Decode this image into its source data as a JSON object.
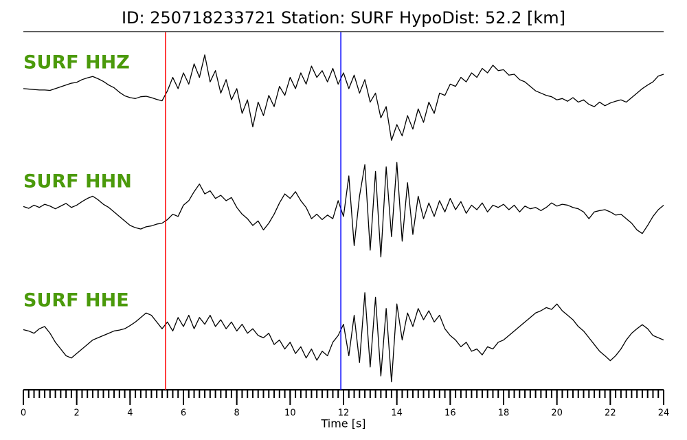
{
  "chart_data": {
    "type": "line",
    "title": "ID: 250718233721   Station: SURF   HypoDist:    52.2 [km]",
    "xlabel": "Time [s]",
    "xlim": [
      0,
      24
    ],
    "xticks": [
      0,
      2,
      4,
      6,
      8,
      10,
      12,
      14,
      16,
      18,
      20,
      22,
      24
    ],
    "minor_xticks": [
      0,
      0.2,
      0.4,
      0.6,
      0.8,
      1,
      1.2,
      1.4,
      1.6,
      1.8,
      2,
      2.2,
      2.4,
      2.6,
      2.8,
      3,
      3.2,
      3.4,
      3.6,
      3.8,
      4,
      4.2,
      4.4,
      4.6,
      4.8,
      5,
      5.2,
      5.4,
      5.6,
      5.8,
      6,
      6.2,
      6.4,
      6.6,
      6.8,
      7,
      7.2,
      7.4,
      7.6,
      7.8,
      8,
      8.2,
      8.4,
      8.6,
      8.8,
      9,
      9.2,
      9.4,
      9.6,
      9.8,
      10,
      10.2,
      10.4,
      10.6,
      10.8,
      11,
      11.2,
      11.4,
      11.6,
      11.8,
      12,
      12.2,
      12.4,
      12.6,
      12.8,
      13,
      13.2,
      13.4,
      13.6,
      13.8,
      14,
      14.2,
      14.4,
      14.6,
      14.8,
      15,
      15.2,
      15.4,
      15.6,
      15.8,
      16,
      16.2,
      16.4,
      16.6,
      16.8,
      17,
      17.2,
      17.4,
      17.6,
      17.8,
      18,
      18.2,
      18.4,
      18.6,
      18.8,
      19,
      19.2,
      19.4,
      19.6,
      19.8,
      20,
      20.2,
      20.4,
      20.6,
      20.8,
      21,
      21.2,
      21.4,
      21.6,
      21.8,
      22,
      22.2,
      22.4,
      22.6,
      22.8,
      23,
      23.2,
      23.4,
      23.6,
      23.8,
      24
    ],
    "ylim": [
      -1.1,
      1.1
    ],
    "label_color": "#4b9a0b",
    "trace_color": "#000000",
    "vlines": [
      {
        "x": 5.33,
        "color": "#ff0000"
      },
      {
        "x": 11.9,
        "color": "#0000ff"
      }
    ],
    "x": [
      0,
      0.2,
      0.4,
      0.6,
      0.8,
      1,
      1.2,
      1.4,
      1.6,
      1.8,
      2,
      2.2,
      2.4,
      2.6,
      2.8,
      3,
      3.2,
      3.4,
      3.6,
      3.8,
      4,
      4.2,
      4.4,
      4.6,
      4.8,
      5,
      5.2,
      5.4,
      5.6,
      5.8,
      6,
      6.2,
      6.4,
      6.6,
      6.8,
      7,
      7.2,
      7.4,
      7.6,
      7.8,
      8,
      8.2,
      8.4,
      8.6,
      8.8,
      9,
      9.2,
      9.4,
      9.6,
      9.8,
      10,
      10.2,
      10.4,
      10.6,
      10.8,
      11,
      11.2,
      11.4,
      11.6,
      11.8,
      12,
      12.2,
      12.4,
      12.6,
      12.8,
      13,
      13.2,
      13.4,
      13.6,
      13.8,
      14,
      14.2,
      14.4,
      14.6,
      14.8,
      15,
      15.2,
      15.4,
      15.6,
      15.8,
      16,
      16.2,
      16.4,
      16.6,
      16.8,
      17,
      17.2,
      17.4,
      17.6,
      17.8,
      18,
      18.2,
      18.4,
      18.6,
      18.8,
      19,
      19.2,
      19.4,
      19.6,
      19.8,
      20,
      20.2,
      20.4,
      20.6,
      20.8,
      21,
      21.2,
      21.4,
      21.6,
      21.8,
      22,
      22.2,
      22.4,
      22.6,
      22.8,
      23,
      23.2,
      23.4,
      23.6,
      23.8,
      24
    ],
    "series": [
      {
        "name": "SURF HHZ",
        "values": [
          0.2,
          0.19,
          0.18,
          0.17,
          0.17,
          0.16,
          0.2,
          0.24,
          0.28,
          0.32,
          0.34,
          0.4,
          0.44,
          0.47,
          0.42,
          0.36,
          0.28,
          0.22,
          0.12,
          0.04,
          0.0,
          -0.02,
          0.02,
          0.03,
          0.0,
          -0.04,
          -0.07,
          0.15,
          0.45,
          0.2,
          0.55,
          0.3,
          0.75,
          0.45,
          0.95,
          0.35,
          0.6,
          0.1,
          0.4,
          -0.05,
          0.2,
          -0.35,
          -0.05,
          -0.65,
          -0.1,
          -0.4,
          0.05,
          -0.2,
          0.25,
          0.05,
          0.45,
          0.2,
          0.55,
          0.3,
          0.7,
          0.45,
          0.6,
          0.35,
          0.65,
          0.3,
          0.55,
          0.2,
          0.5,
          0.1,
          0.4,
          -0.1,
          0.1,
          -0.45,
          -0.2,
          -0.95,
          -0.6,
          -0.85,
          -0.4,
          -0.7,
          -0.25,
          -0.55,
          -0.1,
          -0.35,
          0.1,
          0.05,
          0.3,
          0.25,
          0.45,
          0.35,
          0.55,
          0.45,
          0.65,
          0.55,
          0.72,
          0.6,
          0.62,
          0.5,
          0.52,
          0.4,
          0.35,
          0.25,
          0.15,
          0.1,
          0.05,
          0.02,
          -0.05,
          -0.02,
          -0.08,
          0.0,
          -0.1,
          -0.05,
          -0.15,
          -0.2,
          -0.1,
          -0.18,
          -0.12,
          -0.08,
          -0.05,
          -0.1,
          0.0,
          0.1,
          0.2,
          0.28,
          0.35,
          0.48,
          0.52
        ]
      },
      {
        "name": "SURF HHN",
        "values": [
          0.07,
          0.03,
          0.1,
          0.05,
          0.12,
          0.08,
          0.02,
          0.08,
          0.14,
          0.05,
          0.1,
          0.18,
          0.25,
          0.3,
          0.22,
          0.12,
          0.05,
          -0.05,
          -0.15,
          -0.25,
          -0.35,
          -0.4,
          -0.43,
          -0.38,
          -0.36,
          -0.32,
          -0.3,
          -0.22,
          -0.1,
          -0.15,
          0.1,
          0.2,
          0.4,
          0.57,
          0.35,
          0.42,
          0.25,
          0.32,
          0.2,
          0.27,
          0.05,
          -0.1,
          -0.2,
          -0.35,
          -0.25,
          -0.45,
          -0.3,
          -0.1,
          0.15,
          0.35,
          0.25,
          0.4,
          0.2,
          0.05,
          -0.2,
          -0.1,
          -0.22,
          -0.12,
          -0.2,
          0.2,
          -0.15,
          0.75,
          -0.8,
          0.3,
          1.0,
          -0.9,
          0.85,
          -1.05,
          0.95,
          -0.6,
          1.05,
          -0.7,
          0.6,
          -0.55,
          0.3,
          -0.2,
          0.15,
          -0.15,
          0.2,
          -0.05,
          0.25,
          0.0,
          0.18,
          -0.08,
          0.1,
          0.0,
          0.15,
          -0.05,
          0.1,
          0.05,
          0.12,
          0.0,
          0.1,
          -0.05,
          0.08,
          0.02,
          0.05,
          -0.02,
          0.05,
          0.15,
          0.08,
          0.12,
          0.1,
          0.05,
          0.02,
          -0.05,
          -0.2,
          -0.05,
          -0.02,
          0.0,
          -0.05,
          -0.12,
          -0.1,
          -0.2,
          -0.3,
          -0.45,
          -0.53,
          -0.35,
          -0.15,
          0.0,
          0.1
        ]
      },
      {
        "name": "SURF HHE",
        "values": [
          0.13,
          0.1,
          0.05,
          0.15,
          0.2,
          0.05,
          -0.15,
          -0.3,
          -0.45,
          -0.5,
          -0.4,
          -0.3,
          -0.2,
          -0.1,
          -0.05,
          0.0,
          0.05,
          0.1,
          0.12,
          0.15,
          0.22,
          0.3,
          0.4,
          0.5,
          0.45,
          0.3,
          0.15,
          0.3,
          0.1,
          0.4,
          0.2,
          0.45,
          0.15,
          0.4,
          0.25,
          0.45,
          0.2,
          0.35,
          0.15,
          0.3,
          0.1,
          0.25,
          0.05,
          0.15,
          0.0,
          -0.05,
          0.05,
          -0.2,
          -0.1,
          -0.3,
          -0.15,
          -0.4,
          -0.25,
          -0.5,
          -0.3,
          -0.55,
          -0.35,
          -0.45,
          -0.15,
          0.0,
          0.25,
          -0.45,
          0.45,
          -0.6,
          0.95,
          -0.7,
          0.85,
          -0.9,
          0.6,
          -1.03,
          0.7,
          -0.1,
          0.5,
          0.2,
          0.6,
          0.35,
          0.55,
          0.3,
          0.45,
          0.15,
          0.0,
          -0.1,
          -0.25,
          -0.15,
          -0.35,
          -0.3,
          -0.43,
          -0.25,
          -0.3,
          -0.15,
          -0.1,
          0.0,
          0.1,
          0.2,
          0.3,
          0.4,
          0.5,
          0.55,
          0.62,
          0.58,
          0.7,
          0.55,
          0.45,
          0.35,
          0.2,
          0.1,
          -0.05,
          -0.2,
          -0.35,
          -0.45,
          -0.56,
          -0.45,
          -0.3,
          -0.1,
          0.05,
          0.15,
          0.24,
          0.15,
          0.0,
          -0.05,
          -0.1
        ]
      }
    ]
  }
}
